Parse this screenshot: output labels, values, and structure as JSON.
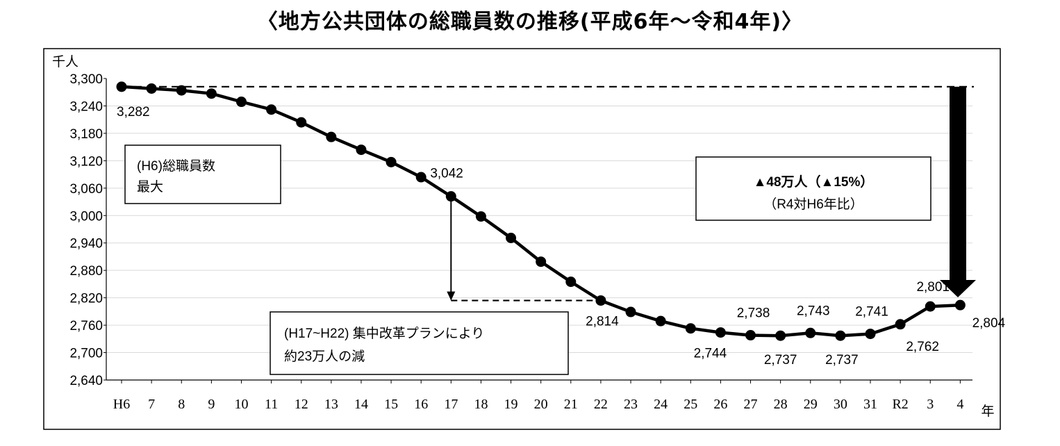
{
  "chart_data": {
    "type": "line",
    "title": "〈地方公共団体の総職員数の推移(平成6年～令和4年)〉",
    "ylabel": "千人",
    "xlabel": "年",
    "ylim": [
      2640,
      3300
    ],
    "yticks": [
      "3,300",
      "3,240",
      "3,180",
      "3,120",
      "3,060",
      "3,000",
      "2,940",
      "2,880",
      "2,820",
      "2,760",
      "2,700",
      "2,640"
    ],
    "categories": [
      "H6",
      "7",
      "8",
      "9",
      "10",
      "11",
      "12",
      "13",
      "14",
      "15",
      "16",
      "17",
      "18",
      "19",
      "20",
      "21",
      "22",
      "23",
      "24",
      "25",
      "26",
      "27",
      "28",
      "29",
      "30",
      "31",
      "R2",
      "3",
      "4"
    ],
    "series": [
      {
        "values": [
          3282,
          3278,
          3274,
          3267,
          3249,
          3232,
          3204,
          3172,
          3144,
          3117,
          3084,
          3042,
          2998,
          2951,
          2899,
          2855,
          2814,
          2789,
          2769,
          2753,
          2744,
          2738,
          2737,
          2743,
          2737,
          2741,
          2762,
          2801,
          2804
        ]
      }
    ],
    "data_labels": [
      {
        "index": 0,
        "text": "3,282"
      },
      {
        "index": 11,
        "text": "3,042"
      },
      {
        "index": 16,
        "text": "2,814"
      },
      {
        "index": 20,
        "text": "2,744"
      },
      {
        "index": 21,
        "text": "2,738"
      },
      {
        "index": 22,
        "text": "2,737"
      },
      {
        "index": 23,
        "text": "2,743"
      },
      {
        "index": 24,
        "text": "2,737"
      },
      {
        "index": 25,
        "text": "2,741"
      },
      {
        "index": 26,
        "text": "2,762"
      },
      {
        "index": 27,
        "text": "2,801"
      },
      {
        "index": 28,
        "text": "2,804"
      }
    ],
    "grid": true,
    "annotations": {
      "peak_line1": "(H6)総職員数",
      "peak_line2": "最大",
      "reform_line1": "(H17~H22) 集中改革プランにより",
      "reform_line2": "約23万人の減",
      "decrease_main": "▲48万人（▲15%）",
      "decrease_sub": "（R4対H6年比）"
    }
  }
}
